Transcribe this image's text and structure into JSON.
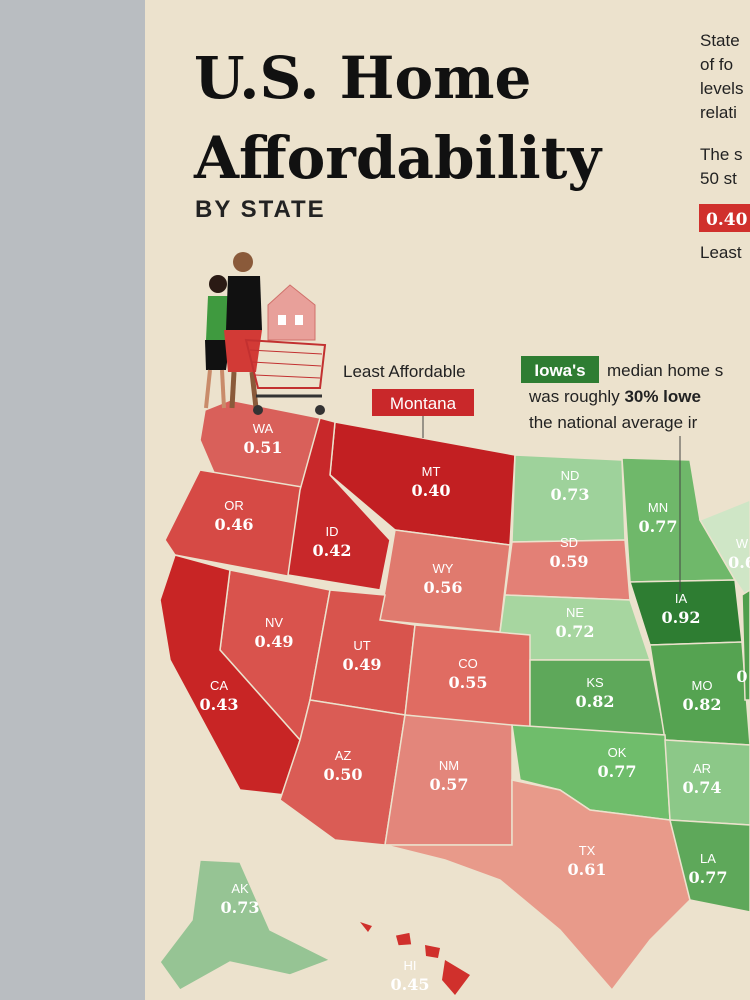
{
  "header": {
    "title_lines": [
      "U.S. Home",
      "Affordability"
    ],
    "subtitle": "BY STATE"
  },
  "intro_lines": [
    "State",
    "of fo",
    "levels",
    "relati",
    "The s",
    "50 st"
  ],
  "legend": {
    "value": "0.40",
    "label": "Least"
  },
  "callouts": [
    {
      "label": "Least Affordable",
      "highlight": "Montana"
    },
    {
      "highlight": "Iowa's",
      "lines": [
        [
          "median home s"
        ],
        [
          "was roughly ",
          "30% lowe"
        ],
        [
          "the national average ir"
        ]
      ]
    }
  ],
  "states": [
    {
      "abbr": "WA",
      "value": "0.51"
    },
    {
      "abbr": "OR",
      "value": "0.46"
    },
    {
      "abbr": "MT",
      "value": "0.40"
    },
    {
      "abbr": "ID",
      "value": "0.42"
    },
    {
      "abbr": "WY",
      "value": "0.56"
    },
    {
      "abbr": "ND",
      "value": "0.73"
    },
    {
      "abbr": "SD",
      "value": "0.59"
    },
    {
      "abbr": "MN",
      "value": "0.77"
    },
    {
      "abbr": "NE",
      "value": "0.72"
    },
    {
      "abbr": "IA",
      "value": "0.92"
    },
    {
      "abbr": "NV",
      "value": "0.49"
    },
    {
      "abbr": "UT",
      "value": "0.49"
    },
    {
      "abbr": "CO",
      "value": "0.55"
    },
    {
      "abbr": "CA",
      "value": "0.43"
    },
    {
      "abbr": "KS",
      "value": "0.82"
    },
    {
      "abbr": "MO",
      "value": "0.82"
    },
    {
      "abbr": "AZ",
      "value": "0.50"
    },
    {
      "abbr": "NM",
      "value": "0.57"
    },
    {
      "abbr": "OK",
      "value": "0.77"
    },
    {
      "abbr": "AR",
      "value": "0.74"
    },
    {
      "abbr": "TX",
      "value": "0.61"
    },
    {
      "abbr": "LA",
      "value": "0.77"
    },
    {
      "abbr": "AK",
      "value": "0.73"
    },
    {
      "abbr": "HI",
      "value": "0.45"
    },
    {
      "abbr": "W",
      "value": "0.6"
    },
    {
      "value": "0"
    }
  ]
}
